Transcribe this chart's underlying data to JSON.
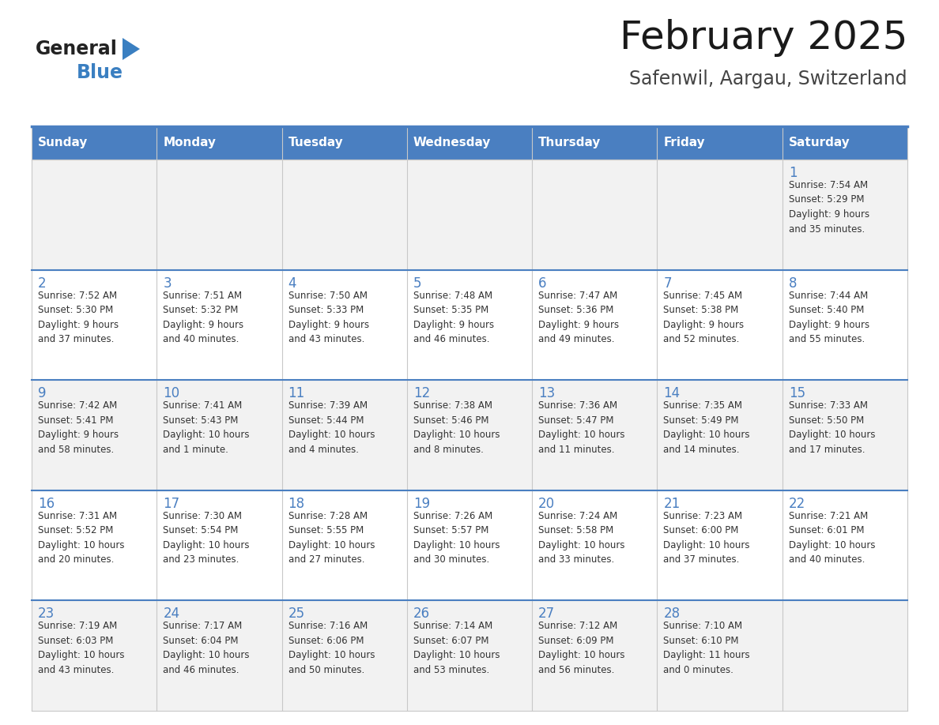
{
  "title": "February 2025",
  "subtitle": "Safenwil, Aargau, Switzerland",
  "days_of_week": [
    "Sunday",
    "Monday",
    "Tuesday",
    "Wednesday",
    "Thursday",
    "Friday",
    "Saturday"
  ],
  "header_bg": "#4a7fc1",
  "header_text": "#FFFFFF",
  "row0_bg": "#f2f2f2",
  "row1_bg": "#ffffff",
  "cell_text_color": "#333333",
  "day_number_color": "#4a7fc1",
  "border_color": "#c8c8c8",
  "blue_line_color": "#4a7fc1",
  "logo_general_color": "#222222",
  "logo_blue_color": "#3a7fc1",
  "calendar_data": [
    [
      null,
      null,
      null,
      null,
      null,
      null,
      {
        "day": "1",
        "sunrise": "7:54 AM",
        "sunset": "5:29 PM",
        "daylight": "9 hours\nand 35 minutes."
      }
    ],
    [
      {
        "day": "2",
        "sunrise": "7:52 AM",
        "sunset": "5:30 PM",
        "daylight": "9 hours\nand 37 minutes."
      },
      {
        "day": "3",
        "sunrise": "7:51 AM",
        "sunset": "5:32 PM",
        "daylight": "9 hours\nand 40 minutes."
      },
      {
        "day": "4",
        "sunrise": "7:50 AM",
        "sunset": "5:33 PM",
        "daylight": "9 hours\nand 43 minutes."
      },
      {
        "day": "5",
        "sunrise": "7:48 AM",
        "sunset": "5:35 PM",
        "daylight": "9 hours\nand 46 minutes."
      },
      {
        "day": "6",
        "sunrise": "7:47 AM",
        "sunset": "5:36 PM",
        "daylight": "9 hours\nand 49 minutes."
      },
      {
        "day": "7",
        "sunrise": "7:45 AM",
        "sunset": "5:38 PM",
        "daylight": "9 hours\nand 52 minutes."
      },
      {
        "day": "8",
        "sunrise": "7:44 AM",
        "sunset": "5:40 PM",
        "daylight": "9 hours\nand 55 minutes."
      }
    ],
    [
      {
        "day": "9",
        "sunrise": "7:42 AM",
        "sunset": "5:41 PM",
        "daylight": "9 hours\nand 58 minutes."
      },
      {
        "day": "10",
        "sunrise": "7:41 AM",
        "sunset": "5:43 PM",
        "daylight": "10 hours\nand 1 minute."
      },
      {
        "day": "11",
        "sunrise": "7:39 AM",
        "sunset": "5:44 PM",
        "daylight": "10 hours\nand 4 minutes."
      },
      {
        "day": "12",
        "sunrise": "7:38 AM",
        "sunset": "5:46 PM",
        "daylight": "10 hours\nand 8 minutes."
      },
      {
        "day": "13",
        "sunrise": "7:36 AM",
        "sunset": "5:47 PM",
        "daylight": "10 hours\nand 11 minutes."
      },
      {
        "day": "14",
        "sunrise": "7:35 AM",
        "sunset": "5:49 PM",
        "daylight": "10 hours\nand 14 minutes."
      },
      {
        "day": "15",
        "sunrise": "7:33 AM",
        "sunset": "5:50 PM",
        "daylight": "10 hours\nand 17 minutes."
      }
    ],
    [
      {
        "day": "16",
        "sunrise": "7:31 AM",
        "sunset": "5:52 PM",
        "daylight": "10 hours\nand 20 minutes."
      },
      {
        "day": "17",
        "sunrise": "7:30 AM",
        "sunset": "5:54 PM",
        "daylight": "10 hours\nand 23 minutes."
      },
      {
        "day": "18",
        "sunrise": "7:28 AM",
        "sunset": "5:55 PM",
        "daylight": "10 hours\nand 27 minutes."
      },
      {
        "day": "19",
        "sunrise": "7:26 AM",
        "sunset": "5:57 PM",
        "daylight": "10 hours\nand 30 minutes."
      },
      {
        "day": "20",
        "sunrise": "7:24 AM",
        "sunset": "5:58 PM",
        "daylight": "10 hours\nand 33 minutes."
      },
      {
        "day": "21",
        "sunrise": "7:23 AM",
        "sunset": "6:00 PM",
        "daylight": "10 hours\nand 37 minutes."
      },
      {
        "day": "22",
        "sunrise": "7:21 AM",
        "sunset": "6:01 PM",
        "daylight": "10 hours\nand 40 minutes."
      }
    ],
    [
      {
        "day": "23",
        "sunrise": "7:19 AM",
        "sunset": "6:03 PM",
        "daylight": "10 hours\nand 43 minutes."
      },
      {
        "day": "24",
        "sunrise": "7:17 AM",
        "sunset": "6:04 PM",
        "daylight": "10 hours\nand 46 minutes."
      },
      {
        "day": "25",
        "sunrise": "7:16 AM",
        "sunset": "6:06 PM",
        "daylight": "10 hours\nand 50 minutes."
      },
      {
        "day": "26",
        "sunrise": "7:14 AM",
        "sunset": "6:07 PM",
        "daylight": "10 hours\nand 53 minutes."
      },
      {
        "day": "27",
        "sunrise": "7:12 AM",
        "sunset": "6:09 PM",
        "daylight": "10 hours\nand 56 minutes."
      },
      {
        "day": "28",
        "sunrise": "7:10 AM",
        "sunset": "6:10 PM",
        "daylight": "11 hours\nand 0 minutes."
      },
      null
    ]
  ]
}
